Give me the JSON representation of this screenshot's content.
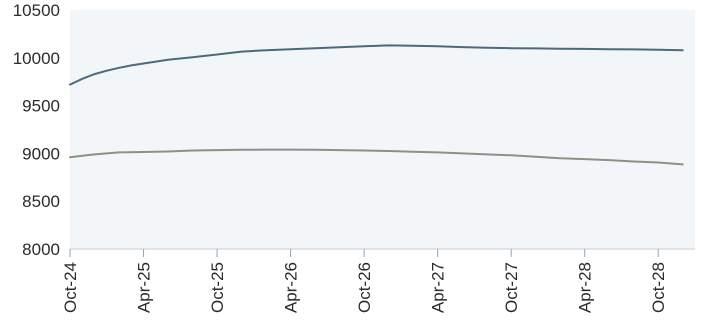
{
  "chart_data": {
    "type": "line",
    "title": "",
    "xlabel": "",
    "ylabel": "",
    "ylim": [
      8000,
      10500
    ],
    "yticks": [
      8000,
      8500,
      9000,
      9500,
      10000,
      10500
    ],
    "xlim": [
      "2024-10",
      "2029-01"
    ],
    "xticks": [
      {
        "date": "2024-10",
        "label": "Oct-24"
      },
      {
        "date": "2025-04",
        "label": "Apr-25"
      },
      {
        "date": "2025-10",
        "label": "Oct-25"
      },
      {
        "date": "2026-04",
        "label": "Apr-26"
      },
      {
        "date": "2026-10",
        "label": "Oct-26"
      },
      {
        "date": "2027-04",
        "label": "Apr-27"
      },
      {
        "date": "2027-10",
        "label": "Oct-27"
      },
      {
        "date": "2028-04",
        "label": "Apr-28"
      },
      {
        "date": "2028-10",
        "label": "Oct-28"
      }
    ],
    "grid": false,
    "legend": "none",
    "background_color": "#f3f6f8",
    "series": [
      {
        "color": "#4b6a7c",
        "x": [
          "2024-10",
          "2024-11",
          "2024-12",
          "2025-01",
          "2025-02",
          "2025-03",
          "2025-04",
          "2025-05",
          "2025-06",
          "2025-08",
          "2025-10",
          "2025-12",
          "2026-02",
          "2026-04",
          "2026-06",
          "2026-08",
          "2026-10",
          "2026-12",
          "2027-02",
          "2027-04",
          "2027-06",
          "2027-08",
          "2027-10",
          "2027-12",
          "2028-02",
          "2028-04",
          "2028-06",
          "2028-08",
          "2028-10",
          "2028-12"
        ],
        "y": [
          9720,
          9780,
          9830,
          9865,
          9895,
          9920,
          9940,
          9960,
          9980,
          10005,
          10035,
          10065,
          10080,
          10090,
          10100,
          10110,
          10120,
          10130,
          10125,
          10120,
          10112,
          10105,
          10100,
          10098,
          10095,
          10093,
          10090,
          10088,
          10085,
          10080
        ]
      },
      {
        "color": "#8e9181",
        "x": [
          "2024-10",
          "2024-11",
          "2024-12",
          "2025-01",
          "2025-02",
          "2025-04",
          "2025-06",
          "2025-08",
          "2025-10",
          "2025-12",
          "2026-02",
          "2026-04",
          "2026-06",
          "2026-08",
          "2026-10",
          "2026-12",
          "2027-02",
          "2027-04",
          "2027-06",
          "2027-08",
          "2027-10",
          "2027-12",
          "2028-02",
          "2028-04",
          "2028-06",
          "2028-08",
          "2028-10",
          "2028-12"
        ],
        "y": [
          8960,
          8975,
          8990,
          9000,
          9010,
          9015,
          9020,
          9030,
          9035,
          9038,
          9040,
          9040,
          9038,
          9035,
          9030,
          9025,
          9018,
          9010,
          9000,
          8990,
          8980,
          8965,
          8950,
          8940,
          8930,
          8915,
          8905,
          8885
        ]
      }
    ]
  }
}
